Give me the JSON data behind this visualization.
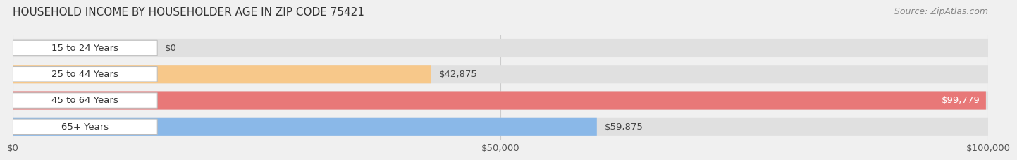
{
  "title": "HOUSEHOLD INCOME BY HOUSEHOLDER AGE IN ZIP CODE 75421",
  "source": "Source: ZipAtlas.com",
  "categories": [
    "15 to 24 Years",
    "25 to 44 Years",
    "45 to 64 Years",
    "65+ Years"
  ],
  "values": [
    0,
    42875,
    99779,
    59875
  ],
  "bar_colors": [
    "#f5a0b5",
    "#f7c88a",
    "#e87878",
    "#8ab8e8"
  ],
  "x_max": 100000,
  "x_ticks": [
    0,
    50000,
    100000
  ],
  "x_tick_labels": [
    "$0",
    "$50,000",
    "$100,000"
  ],
  "label_fontsize": 9.5,
  "title_fontsize": 11,
  "source_fontsize": 9,
  "value_labels": [
    "$0",
    "$42,875",
    "$99,779",
    "$59,875"
  ],
  "background_color": "#f0f0f0"
}
